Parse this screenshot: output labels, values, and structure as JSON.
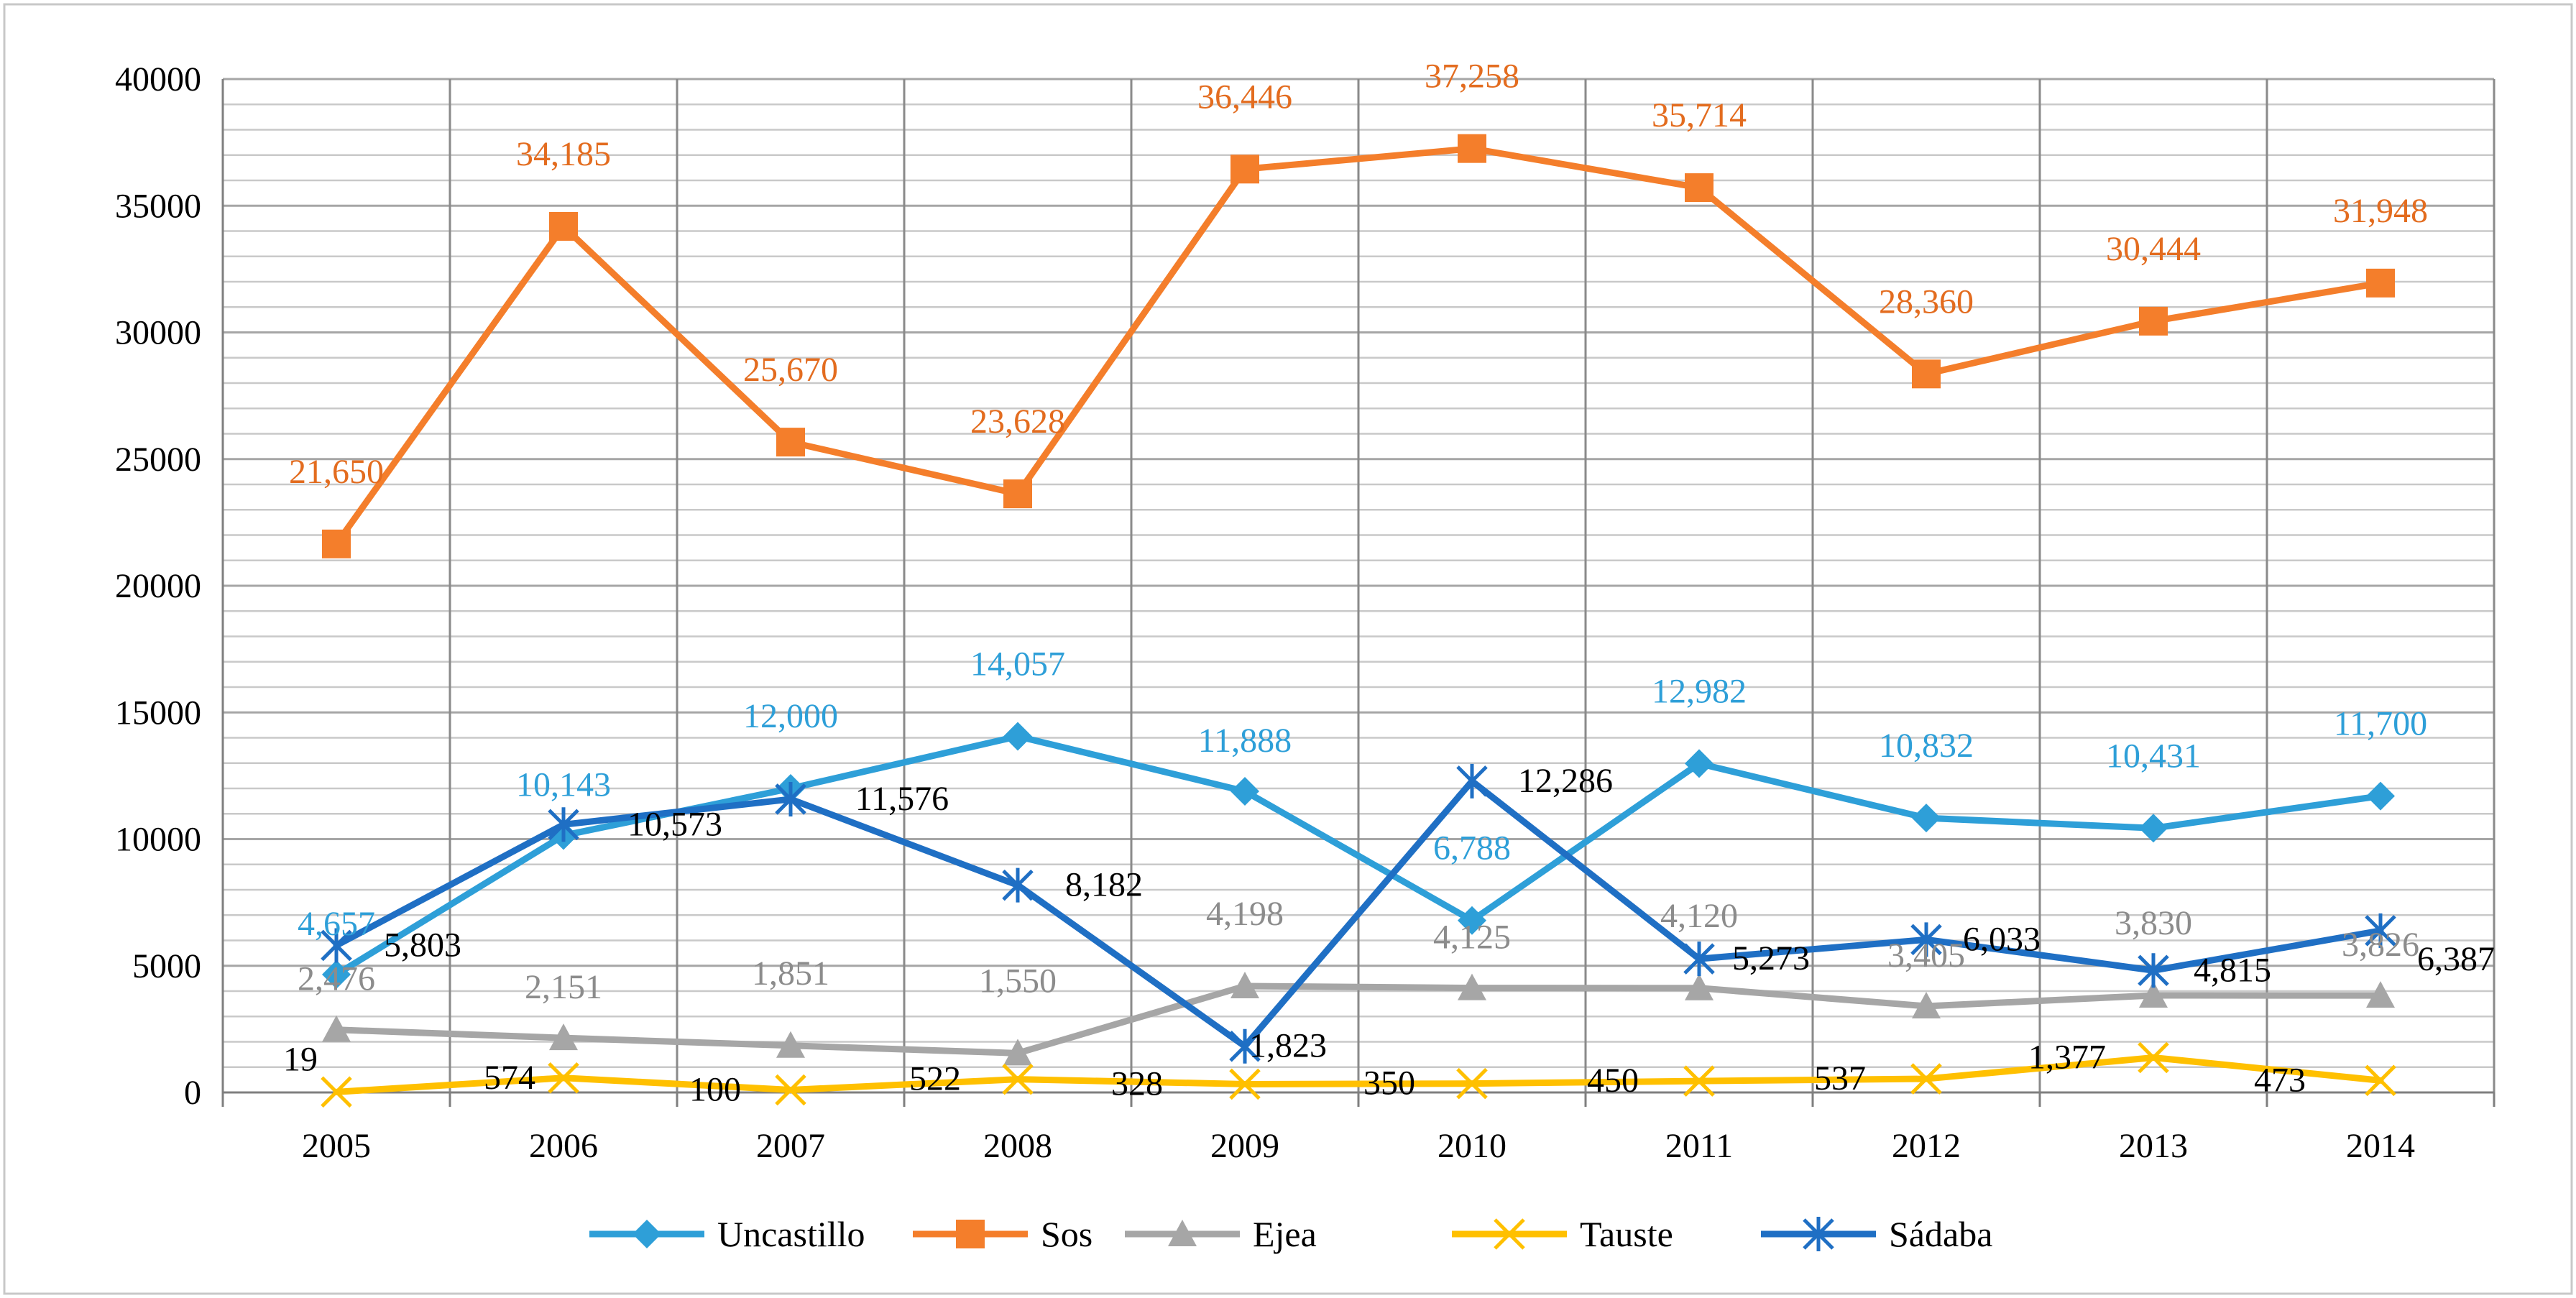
{
  "chart_data": {
    "type": "line",
    "title": "",
    "xlabel": "",
    "ylabel": "",
    "categories": [
      "2005",
      "2006",
      "2007",
      "2008",
      "2009",
      "2010",
      "2011",
      "2012",
      "2013",
      "2014"
    ],
    "ylim": [
      0,
      40000
    ],
    "y_ticks": [
      0,
      5000,
      10000,
      15000,
      20000,
      25000,
      30000,
      35000,
      40000
    ],
    "grid": true,
    "legend_position": "bottom",
    "series": [
      {
        "name": "Uncastillo",
        "color": "#2E9FD8",
        "label_color": "#2E9FD8",
        "marker": "diamond",
        "values": [
          4657,
          10143,
          12000,
          14057,
          11888,
          6788,
          12982,
          10832,
          10431,
          11700
        ],
        "labels": [
          "4,657",
          "10,143",
          "12,000",
          "14,057",
          "11,888",
          "6,788",
          "12,982",
          "10,832",
          "10,431",
          "11,700"
        ]
      },
      {
        "name": "Sos",
        "color": "#F47E2B",
        "label_color": "#E36C1F",
        "marker": "square",
        "values": [
          21650,
          34185,
          25670,
          23628,
          36446,
          37258,
          35714,
          28360,
          30444,
          31948
        ],
        "labels": [
          "21,650",
          "34,185",
          "25,670",
          "23,628",
          "36,446",
          "37,258",
          "35,714",
          "28,360",
          "30,444",
          "31,948"
        ]
      },
      {
        "name": "Ejea",
        "color": "#A6A6A6",
        "label_color": "#8C8C8C",
        "marker": "triangle",
        "values": [
          2476,
          2151,
          1851,
          1550,
          4198,
          4125,
          4120,
          3405,
          3830,
          3826
        ],
        "labels": [
          "2,476",
          "2,151",
          "1,851",
          "1,550",
          "4,198",
          "4,125",
          "4,120",
          "3,405",
          "3,830",
          "3,826"
        ]
      },
      {
        "name": "Tauste",
        "color": "#FFC000",
        "label_color": "#000000",
        "marker": "x",
        "values": [
          19,
          574,
          100,
          522,
          328,
          350,
          450,
          537,
          1377,
          473
        ],
        "labels": [
          "19",
          "574",
          "100",
          "522",
          "328",
          "350",
          "450",
          "537",
          "1,377",
          "473"
        ]
      },
      {
        "name": "Sádaba",
        "color": "#1F6FC4",
        "label_color": "#000000",
        "marker": "star",
        "values": [
          5803,
          10573,
          11576,
          8182,
          1823,
          12286,
          5273,
          6033,
          4815,
          6387
        ],
        "labels": [
          "5,803",
          "10,573",
          "11,576",
          "8,182",
          "1,823",
          "12,286",
          "5,273",
          "6,033",
          "4,815",
          "6,387"
        ]
      }
    ]
  }
}
